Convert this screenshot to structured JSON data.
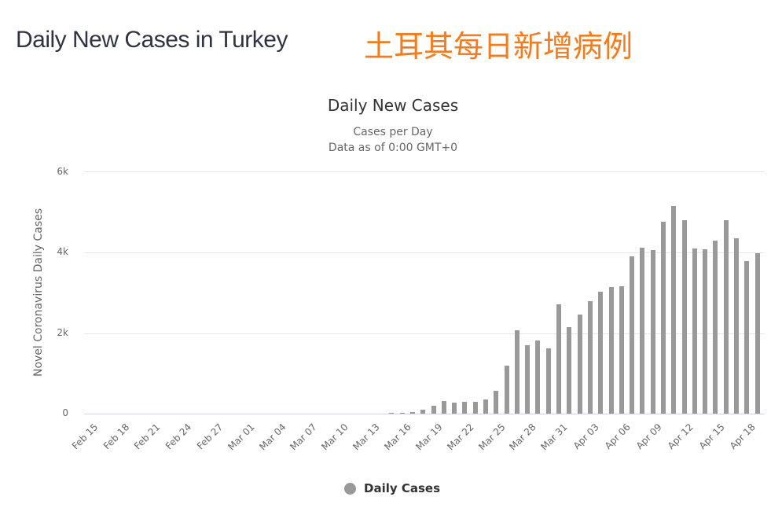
{
  "header": {
    "title": "Daily New Cases in Turkey",
    "title_cn": "土耳其每日新增病例",
    "title_cn_color": "#f47c20"
  },
  "chart_data": {
    "type": "bar",
    "title": "Daily New Cases",
    "subtitle": "Cases per Day",
    "subtitle2": "Data as of 0:00 GMT+0",
    "xlabel": "",
    "ylabel": "Novel Coronavirus Daily Cases",
    "ylim": [
      0,
      6000
    ],
    "yticks": [
      "0",
      "2k",
      "4k",
      "6k"
    ],
    "grid": true,
    "legend_position": "bottom",
    "bar_color": "#999999",
    "x_tick_labels": [
      "Feb 15",
      "Feb 18",
      "Feb 21",
      "Feb 24",
      "Feb 27",
      "Mar 01",
      "Mar 04",
      "Mar 07",
      "Mar 10",
      "Mar 13",
      "Mar 16",
      "Mar 19",
      "Mar 22",
      "Mar 25",
      "Mar 28",
      "Mar 31",
      "Apr 03",
      "Apr 06",
      "Apr 09",
      "Apr 12",
      "Apr 15",
      "Apr 18"
    ],
    "categories": [
      "Feb 15",
      "Feb 16",
      "Feb 17",
      "Feb 18",
      "Feb 19",
      "Feb 20",
      "Feb 21",
      "Feb 22",
      "Feb 23",
      "Feb 24",
      "Feb 25",
      "Feb 26",
      "Feb 27",
      "Feb 28",
      "Feb 29",
      "Mar 01",
      "Mar 02",
      "Mar 03",
      "Mar 04",
      "Mar 05",
      "Mar 06",
      "Mar 07",
      "Mar 08",
      "Mar 09",
      "Mar 10",
      "Mar 11",
      "Mar 12",
      "Mar 13",
      "Mar 14",
      "Mar 15",
      "Mar 16",
      "Mar 17",
      "Mar 18",
      "Mar 19",
      "Mar 20",
      "Mar 21",
      "Mar 22",
      "Mar 23",
      "Mar 24",
      "Mar 25",
      "Mar 26",
      "Mar 27",
      "Mar 28",
      "Mar 29",
      "Mar 30",
      "Mar 31",
      "Apr 01",
      "Apr 02",
      "Apr 03",
      "Apr 04",
      "Apr 05",
      "Apr 06",
      "Apr 07",
      "Apr 08",
      "Apr 09",
      "Apr 10",
      "Apr 11",
      "Apr 12",
      "Apr 13",
      "Apr 14",
      "Apr 15",
      "Apr 16",
      "Apr 17",
      "Apr 18",
      "Apr 19"
    ],
    "series": [
      {
        "name": "Daily Cases",
        "values": [
          0,
          0,
          0,
          0,
          0,
          0,
          0,
          0,
          0,
          0,
          0,
          0,
          0,
          0,
          0,
          0,
          0,
          0,
          0,
          0,
          0,
          0,
          0,
          0,
          0,
          1,
          0,
          4,
          1,
          12,
          29,
          47,
          98,
          191,
          311,
          277,
          289,
          293,
          343,
          561,
          1196,
          2069,
          1704,
          1815,
          1610,
          2704,
          2148,
          2456,
          2786,
          3013,
          3135,
          3148,
          3892,
          4117,
          4056,
          4747,
          5138,
          4789,
          4093,
          4062,
          4281,
          4801,
          4353,
          3783,
          3977
        ]
      }
    ]
  },
  "legend": {
    "items": [
      {
        "label": "Daily Cases",
        "color": "#999999"
      }
    ]
  }
}
